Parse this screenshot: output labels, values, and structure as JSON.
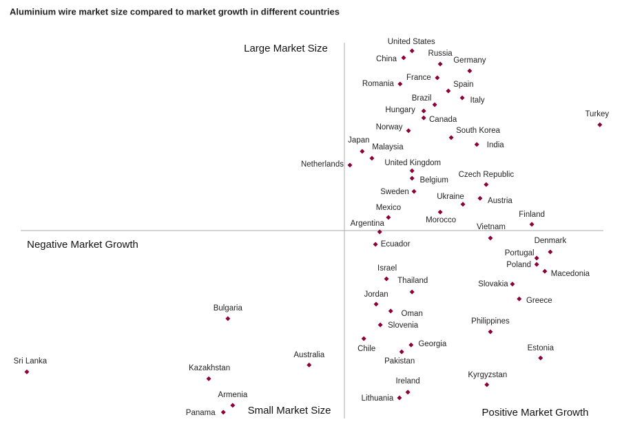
{
  "chart_data": {
    "type": "scatter",
    "title": "Aluminium wire market size compared to market growth in different countries",
    "annotations": [
      "Large Market Size",
      "Negative Market Growth",
      "Small Market Size",
      "Positive Market Growth"
    ],
    "color": "#8b0038",
    "xlim": [
      -100,
      80
    ],
    "ylim": [
      -60,
      60
    ],
    "labels": [
      "United States",
      "China",
      "Russia",
      "Germany",
      "France",
      "Spain",
      "Romania",
      "Italy",
      "Brazil",
      "Hungary",
      "Canada",
      "Norway",
      "Turkey",
      "South Korea",
      "India",
      "Japan",
      "Malaysia",
      "Netherlands",
      "United Kingdom",
      "Belgium",
      "Czech Republic",
      "Sweden",
      "Ukraine",
      "Austria",
      "Mexico",
      "Morocco",
      "Finland",
      "Argentina",
      "Vietnam",
      "Ecuador",
      "Denmark",
      "Portugal",
      "Poland",
      "Macedonia",
      "Israel",
      "Slovakia",
      "Thailand",
      "Greece",
      "Jordan",
      "Oman",
      "Slovenia",
      "Bulgaria",
      "Philippines",
      "Chile",
      "Georgia",
      "Pakistan",
      "Estonia",
      "Sri Lanka",
      "Australia",
      "Kazakhstan",
      "Kyrgyzstan",
      "Ireland",
      "Lithuania",
      "Armenia",
      "Panama"
    ],
    "x": [
      20.9,
      18.3,
      29.6,
      38.7,
      28.7,
      32.1,
      17.2,
      36.4,
      27.9,
      24.5,
      24.5,
      19.8,
      78.9,
      33.0,
      40.9,
      5.5,
      8.5,
      1.7,
      20.9,
      20.9,
      43.8,
      21.5,
      36.6,
      41.9,
      13.6,
      29.6,
      57.9,
      10.9,
      45.1,
      9.6,
      63.6,
      59.4,
      59.4,
      61.9,
      13.0,
      51.9,
      20.9,
      54.0,
      9.8,
      14.3,
      11.1,
      -36.0,
      45.1,
      6.0,
      20.6,
      17.7,
      60.6,
      -98.1,
      -10.9,
      -41.9,
      44.0,
      19.6,
      17.0,
      -34.5,
      -37.4
    ],
    "y": [
      57.4,
      55.2,
      53.2,
      51.0,
      48.8,
      44.6,
      46.8,
      42.4,
      40.2,
      38.2,
      36.0,
      31.9,
      33.8,
      29.7,
      27.5,
      25.3,
      23.1,
      20.9,
      19.1,
      16.7,
      14.7,
      12.5,
      8.4,
      10.3,
      4.2,
      5.9,
      2.0,
      -0.4,
      -2.4,
      -4.4,
      -6.8,
      -8.8,
      -10.8,
      -13.0,
      -15.4,
      -17.1,
      -19.6,
      -21.8,
      -23.5,
      -25.7,
      -30.1,
      -28.1,
      -32.3,
      -34.5,
      -36.5,
      -38.7,
      -40.7,
      -45.1,
      -42.9,
      -47.3,
      -49.2,
      -51.6,
      -53.4,
      -55.8,
      -58.0
    ]
  }
}
